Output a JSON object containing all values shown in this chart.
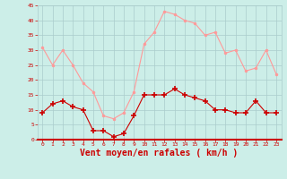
{
  "hours": [
    0,
    1,
    2,
    3,
    4,
    5,
    6,
    7,
    8,
    9,
    10,
    11,
    12,
    13,
    14,
    15,
    16,
    17,
    18,
    19,
    20,
    21,
    22,
    23
  ],
  "vent_moyen": [
    9,
    12,
    13,
    11,
    10,
    3,
    3,
    1,
    2,
    8,
    15,
    15,
    15,
    17,
    15,
    14,
    13,
    10,
    10,
    9,
    9,
    13,
    9,
    9
  ],
  "en_rafales": [
    31,
    25,
    30,
    25,
    19,
    16,
    8,
    7,
    9,
    16,
    32,
    36,
    43,
    42,
    40,
    39,
    35,
    36,
    29,
    30,
    23,
    24,
    30,
    22
  ],
  "color_moyen": "#cc0000",
  "color_rafales": "#ff9999",
  "bg_color": "#cceee8",
  "grid_color": "#aacccc",
  "xlabel": "Vent moyen/en rafales ( km/h )",
  "xlabel_color": "#cc0000",
  "xlabel_fontsize": 7,
  "ylim": [
    0,
    45
  ],
  "yticks": [
    0,
    5,
    10,
    15,
    20,
    25,
    30,
    35,
    40,
    45
  ],
  "tick_color": "#cc0000",
  "marker_moyen": "+",
  "marker_rafales": "o",
  "markersize_moyen": 4,
  "markersize_rafales": 2,
  "linewidth": 0.8
}
